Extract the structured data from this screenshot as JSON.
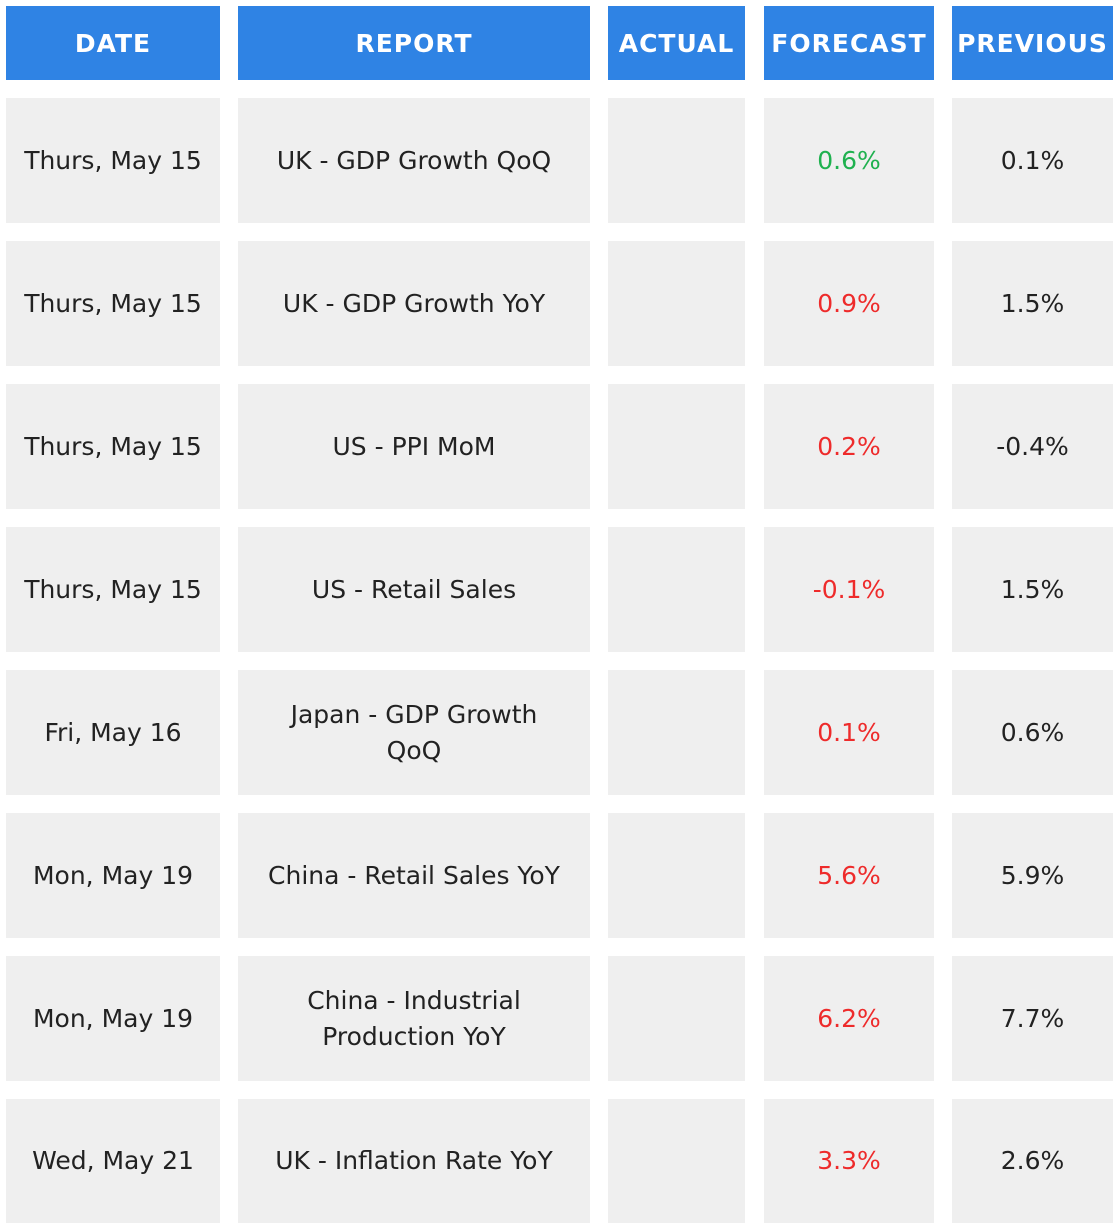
{
  "headers": {
    "date": "DATE",
    "report": "REPORT",
    "actual": "ACTUAL",
    "forecast": "FORECAST",
    "previous": "PREVIOUS"
  },
  "colors": {
    "header_bg": "#2f83e4",
    "cell_bg": "#efefef",
    "forecast_up": "#1fb14f",
    "forecast_down": "#ee2b2b"
  },
  "rows": [
    {
      "date": "Thurs, May 15",
      "report": "UK - GDP Growth QoQ",
      "actual": "",
      "forecast": "0.6%",
      "previous": "0.1%",
      "forecast_trend": "up"
    },
    {
      "date": "Thurs, May 15",
      "report": "UK - GDP Growth YoY",
      "actual": "",
      "forecast": "0.9%",
      "previous": "1.5%",
      "forecast_trend": "down"
    },
    {
      "date": "Thurs, May 15",
      "report": "US - PPI MoM",
      "actual": "",
      "forecast": "0.2%",
      "previous": "-0.4%",
      "forecast_trend": "down"
    },
    {
      "date": "Thurs, May 15",
      "report": "US - Retail Sales",
      "actual": "",
      "forecast": "-0.1%",
      "previous": "1.5%",
      "forecast_trend": "down"
    },
    {
      "date": "Fri, May 16",
      "report": "Japan - GDP Growth QoQ",
      "actual": "",
      "forecast": "0.1%",
      "previous": "0.6%",
      "forecast_trend": "down"
    },
    {
      "date": "Mon, May 19",
      "report": "China - Retail Sales YoY",
      "actual": "",
      "forecast": "5.6%",
      "previous": "5.9%",
      "forecast_trend": "down"
    },
    {
      "date": "Mon, May 19",
      "report": "China - Industrial Production YoY",
      "actual": "",
      "forecast": "6.2%",
      "previous": "7.7%",
      "forecast_trend": "down"
    },
    {
      "date": "Wed, May 21",
      "report": "UK - Inflation Rate YoY",
      "actual": "",
      "forecast": "3.3%",
      "previous": "2.6%",
      "forecast_trend": "down"
    }
  ]
}
